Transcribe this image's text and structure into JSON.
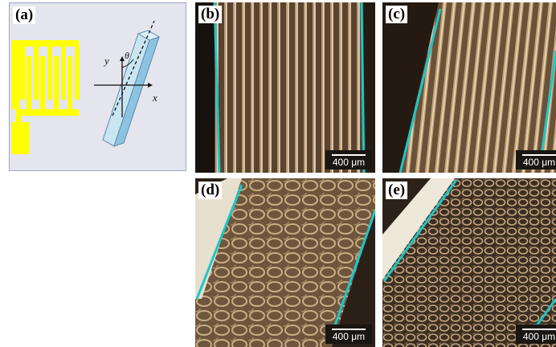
{
  "figure": {
    "panels": [
      {
        "id": "a",
        "label": "(a)",
        "axes": {
          "x": "x",
          "y": "y",
          "angle": "θ"
        }
      },
      {
        "id": "b",
        "label": "(b)",
        "scale": "400 μm"
      },
      {
        "id": "c",
        "label": "(c)",
        "scale": "400 μm"
      },
      {
        "id": "d",
        "label": "(d)",
        "scale": "400 μm"
      },
      {
        "id": "e",
        "label": "(e)",
        "scale": "400 μm"
      }
    ],
    "colors": {
      "electrode": "#ffff00",
      "sample": "#a8d4ea",
      "boundary_line": "#1cc7c7",
      "texture_base": "#5a4431"
    }
  }
}
